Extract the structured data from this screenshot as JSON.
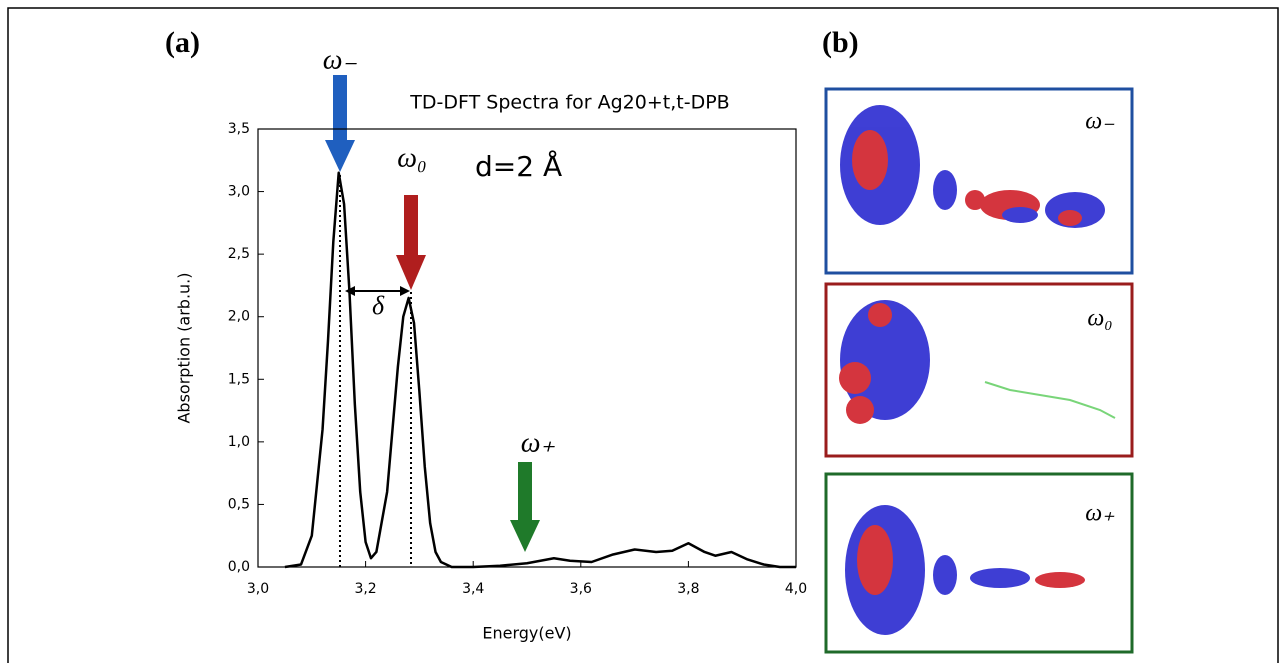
{
  "chart_data": {
    "type": "line",
    "title": "TD-DFT Spectra for Ag20+t,t-DPB",
    "x_label": "Energy(eV)",
    "y_label": "Absorption (arb.u.)",
    "x": [
      3.05,
      3.08,
      3.1,
      3.12,
      3.13,
      3.14,
      3.15,
      3.16,
      3.17,
      3.18,
      3.19,
      3.2,
      3.21,
      3.22,
      3.24,
      3.25,
      3.26,
      3.27,
      3.28,
      3.29,
      3.3,
      3.31,
      3.32,
      3.33,
      3.34,
      3.36,
      3.4,
      3.45,
      3.5,
      3.55,
      3.58,
      3.62,
      3.66,
      3.7,
      3.74,
      3.77,
      3.8,
      3.83,
      3.85,
      3.88,
      3.91,
      3.94,
      3.97,
      4.0
    ],
    "values": [
      0,
      0.02,
      0.25,
      1.1,
      1.8,
      2.6,
      3.15,
      2.9,
      2.2,
      1.3,
      0.6,
      0.2,
      0.07,
      0.12,
      0.6,
      1.1,
      1.6,
      2.0,
      2.15,
      1.95,
      1.4,
      0.8,
      0.35,
      0.12,
      0.04,
      0,
      0,
      0.01,
      0.03,
      0.07,
      0.05,
      0.04,
      0.1,
      0.14,
      0.12,
      0.13,
      0.19,
      0.12,
      0.09,
      0.12,
      0.06,
      0.02,
      0,
      0
    ],
    "color": "#000000",
    "xlim": [
      3.0,
      4.0
    ],
    "xticks": [
      {
        "value": 3.0,
        "label": "3,0"
      },
      {
        "value": 3.2,
        "label": "3,2"
      },
      {
        "value": 3.4,
        "label": "3,4"
      },
      {
        "value": 3.6,
        "label": "3,6"
      },
      {
        "value": 3.8,
        "label": "3,8"
      },
      {
        "value": 4.0,
        "label": "4,0"
      }
    ],
    "ylim": [
      0,
      3.5
    ],
    "yticks": [
      {
        "value": 0,
        "label": "0,0"
      },
      {
        "value": 0.5,
        "label": "0,5"
      },
      {
        "value": 1.0,
        "label": "1,0"
      },
      {
        "value": 1.5,
        "label": "1,5"
      },
      {
        "value": 2.0,
        "label": "2,0"
      },
      {
        "value": 2.5,
        "label": "2,5"
      },
      {
        "value": 3.0,
        "label": "3,0"
      },
      {
        "value": 3.5,
        "label": "3,5"
      }
    ],
    "grid": false,
    "annotations": {
      "panel": "(a)",
      "omega_minus": "ω₋",
      "omega_zero": "ω₀",
      "omega_plus": "ω₊",
      "delta": "δ",
      "distance": "d=2 Å"
    }
  },
  "panel_b": {
    "label": "(b)",
    "panels": [
      "ω₋",
      "ω₀",
      "ω₊"
    ]
  }
}
